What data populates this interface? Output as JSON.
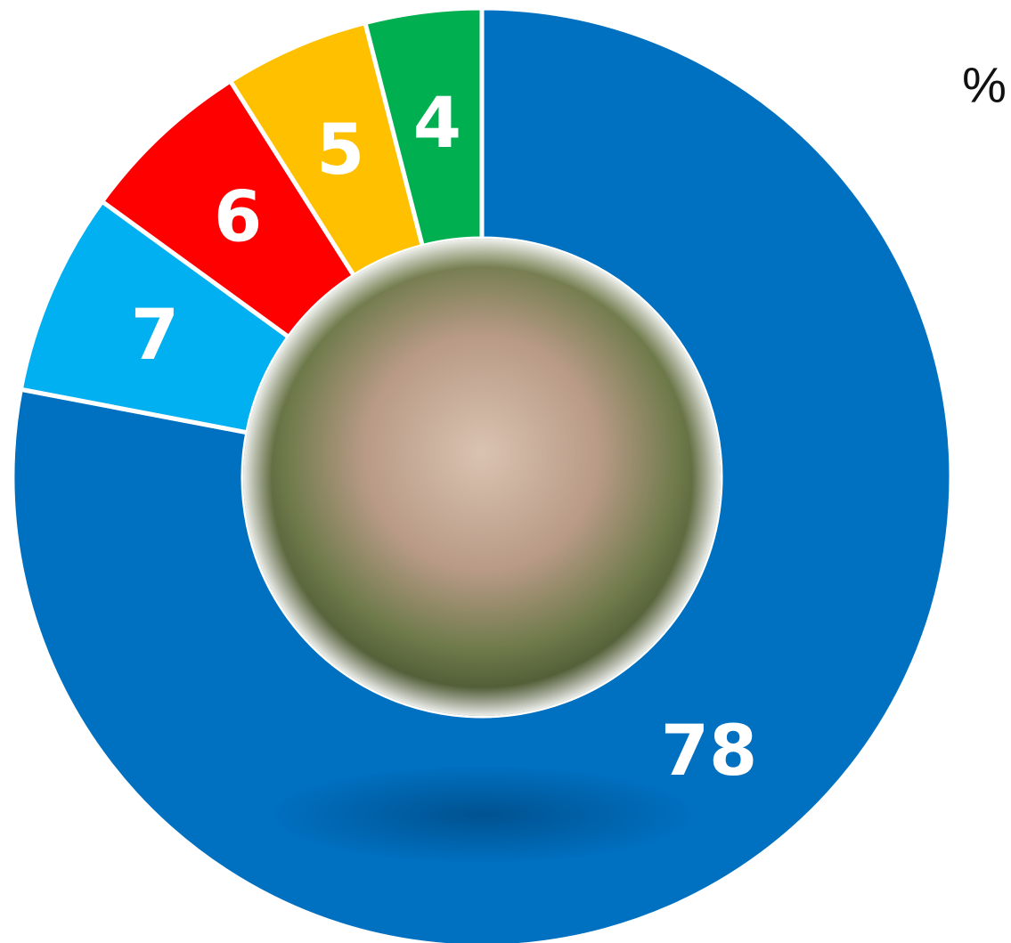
{
  "chart_data": {
    "type": "donut",
    "unit_label": "%",
    "values": [
      78,
      7,
      6,
      5,
      4
    ],
    "colors": [
      "#0070c0",
      "#00b0f0",
      "#ff0000",
      "#ffc000",
      "#00b050"
    ],
    "start_angle": 0,
    "direction": "clockwise"
  }
}
